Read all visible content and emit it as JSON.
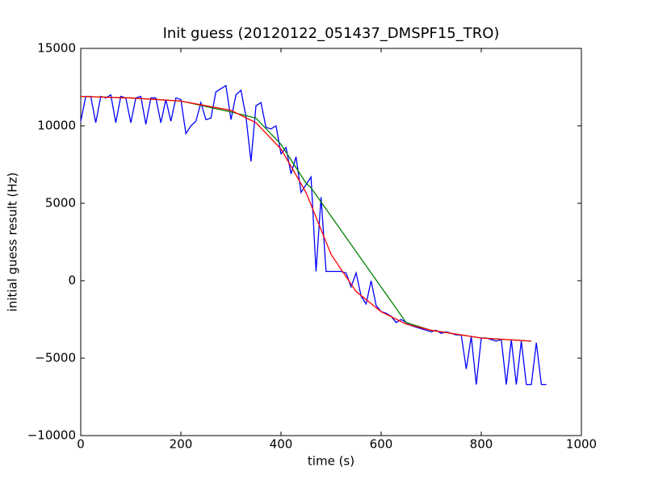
{
  "chart_data": {
    "type": "line",
    "title": "Init guess (20120122_051437_DMSPF15_TRO)",
    "x_label": "time (s)",
    "y_label": "initial guess result (Hz)",
    "xlim": [
      0,
      1000
    ],
    "ylim": [
      -10000,
      15000
    ],
    "xticks": [
      0,
      200,
      400,
      600,
      800,
      1000
    ],
    "yticks": [
      {
        "value": -10000,
        "label": "−10000"
      },
      {
        "value": -5000,
        "label": "−5000"
      },
      0,
      5000,
      10000,
      15000
    ],
    "series": [
      {
        "color": "#0000ff",
        "x": [
          0,
          10,
          20,
          30,
          40,
          50,
          60,
          70,
          80,
          90,
          100,
          110,
          120,
          130,
          140,
          150,
          160,
          170,
          180,
          190,
          200,
          210,
          220,
          230,
          240,
          250,
          260,
          270,
          280,
          290,
          300,
          310,
          320,
          330,
          340,
          350,
          360,
          370,
          380,
          390,
          400,
          410,
          420,
          430,
          440,
          450,
          460,
          470,
          480,
          490,
          500,
          510,
          520,
          530,
          540,
          550,
          560,
          570,
          580,
          590,
          600,
          610,
          620,
          630,
          640,
          650,
          660,
          670,
          680,
          690,
          700,
          710,
          720,
          730,
          740,
          750,
          760,
          770,
          780,
          790,
          800,
          810,
          820,
          830,
          840,
          850,
          860,
          870,
          880,
          890,
          900,
          910,
          920,
          930
        ],
        "values": [
          10300,
          11900,
          11900,
          10200,
          11900,
          11800,
          12000,
          10200,
          11900,
          11800,
          10200,
          11800,
          11900,
          10100,
          11800,
          11800,
          10200,
          11700,
          10300,
          11800,
          11700,
          9500,
          10000,
          10300,
          11500,
          10400,
          10500,
          12200,
          12400,
          12600,
          10400,
          12000,
          12300,
          10600,
          7700,
          11300,
          11500,
          9900,
          9800,
          10000,
          8200,
          8600,
          6900,
          8000,
          5700,
          6200,
          6700,
          600,
          5400,
          600,
          600,
          600,
          600,
          500,
          -400,
          500,
          -1000,
          -1500,
          0,
          -1600,
          -2000,
          -2100,
          -2300,
          -2700,
          -2500,
          -2700,
          -2900,
          -3000,
          -3100,
          -3200,
          -3300,
          -3200,
          -3400,
          -3300,
          -3400,
          -3500,
          -3500,
          -5700,
          -3600,
          -6700,
          -3700,
          -3700,
          -3800,
          -3900,
          -3800,
          -6700,
          -3800,
          -6700,
          -3900,
          -6700,
          -6700,
          -4000,
          -6700,
          -6700
        ]
      },
      {
        "color": "#008000",
        "x": [
          0,
          100,
          200,
          300,
          350,
          400,
          450,
          460,
          650,
          700,
          800,
          900
        ],
        "values": [
          11900,
          11800,
          11600,
          10900,
          10500,
          8800,
          6300,
          6000,
          -2700,
          -3200,
          -3700,
          -3900
        ]
      },
      {
        "color": "#ff0000",
        "x": [
          0,
          100,
          200,
          300,
          350,
          400,
          450,
          500,
          550,
          600,
          650,
          700,
          800,
          900
        ],
        "values": [
          11900,
          11800,
          11600,
          11000,
          10200,
          8500,
          5700,
          1700,
          -700,
          -2000,
          -2800,
          -3200,
          -3700,
          -3900
        ]
      }
    ]
  }
}
